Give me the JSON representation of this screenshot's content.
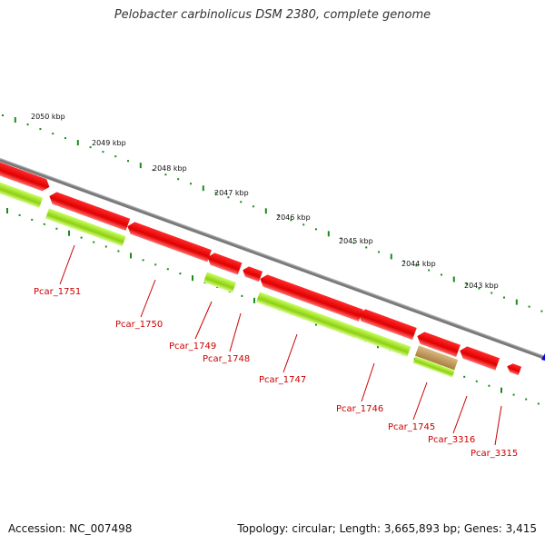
{
  "title": "Pelobacter carbinolicus DSM 2380, complete genome",
  "accession": "Accession: NC_007498",
  "stats": "Topology: circular; Length: 3,665,893 bp; Genes: 3,415",
  "scale_labels": [
    "2050 kbp",
    "2049 kbp",
    "2048 kbp",
    "2047 kbp",
    "2046 kbp",
    "2045 kbp",
    "2044 kbp",
    "2043 kbp"
  ],
  "gene_labels": [
    "Pcar_1751",
    "Pcar_1750",
    "Pcar_1749",
    "Pcar_1748",
    "Pcar_1747",
    "Pcar_1746",
    "Pcar_1745",
    "Pcar_3316",
    "Pcar_3315"
  ],
  "colors": {
    "cds": "#ff0000",
    "gene": "#99dd11",
    "pseudo": "#c8a060",
    "backbone": "#808080",
    "ticks": "#1a8a1a",
    "labels": "#cc0000",
    "marker": "#0000ff"
  }
}
